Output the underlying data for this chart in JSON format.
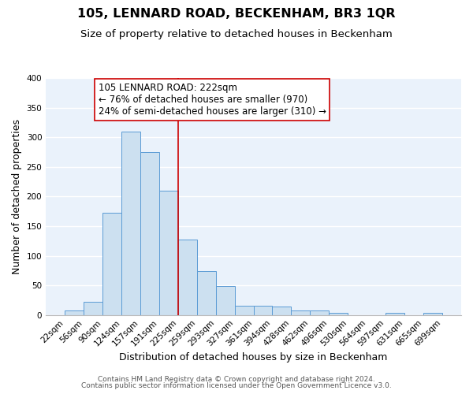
{
  "title": "105, LENNARD ROAD, BECKENHAM, BR3 1QR",
  "subtitle": "Size of property relative to detached houses in Beckenham",
  "xlabel": "Distribution of detached houses by size in Beckenham",
  "ylabel": "Number of detached properties",
  "bin_edges": [
    22,
    56,
    90,
    124,
    157,
    191,
    225,
    259,
    293,
    327,
    361,
    394,
    428,
    462,
    496,
    530,
    564,
    597,
    631,
    665,
    699
  ],
  "bin_labels": [
    "22sqm",
    "56sqm",
    "90sqm",
    "124sqm",
    "157sqm",
    "191sqm",
    "225sqm",
    "259sqm",
    "293sqm",
    "327sqm",
    "361sqm",
    "394sqm",
    "428sqm",
    "462sqm",
    "496sqm",
    "530sqm",
    "564sqm",
    "597sqm",
    "631sqm",
    "665sqm",
    "699sqm"
  ],
  "counts": [
    7,
    22,
    172,
    310,
    275,
    210,
    127,
    74,
    49,
    16,
    15,
    14,
    8,
    8,
    3,
    0,
    0,
    3,
    0,
    4
  ],
  "bar_facecolor": "#cce0f0",
  "bar_edgecolor": "#5b9bd5",
  "vline_x": 225,
  "vline_color": "#cc0000",
  "annotation_line1": "105 LENNARD ROAD: 222sqm",
  "annotation_line2": "← 76% of detached houses are smaller (970)",
  "annotation_line3": "24% of semi-detached houses are larger (310) →",
  "annotation_bbox_edgecolor": "#cc0000",
  "annotation_bbox_facecolor": "white",
  "ylim": [
    0,
    400
  ],
  "yticks": [
    0,
    50,
    100,
    150,
    200,
    250,
    300,
    350,
    400
  ],
  "footer1": "Contains HM Land Registry data © Crown copyright and database right 2024.",
  "footer2": "Contains public sector information licensed under the Open Government Licence v3.0.",
  "bg_color": "#eaf2fb",
  "grid_color": "#ffffff",
  "title_fontsize": 11.5,
  "subtitle_fontsize": 9.5,
  "ylabel_fontsize": 9,
  "xlabel_fontsize": 9,
  "tick_fontsize": 7.5,
  "annotation_fontsize": 8.5,
  "footer_fontsize": 6.5
}
